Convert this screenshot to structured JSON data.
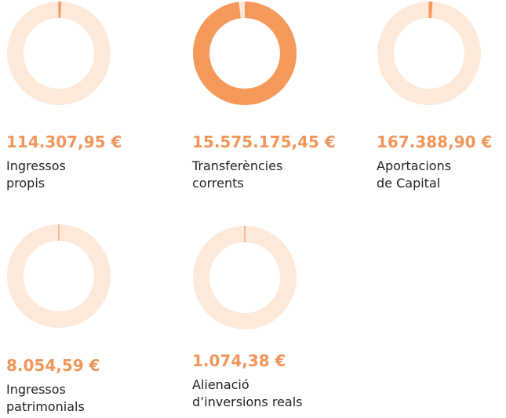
{
  "chart_data": [
    {
      "type": "donut",
      "values": [
        114307.95
      ],
      "value_labels": [
        "114.307,95 €"
      ],
      "label": [
        "Ingressos",
        "propis"
      ],
      "color": "#f4995a",
      "track_color": "#fde9da"
    },
    {
      "type": "donut",
      "values": [
        15575175.45
      ],
      "value_labels": [
        "15.575.175,45 €"
      ],
      "label": [
        "Transferències",
        "corrents"
      ],
      "color": "#f4995a",
      "track_color": "#fde9da"
    },
    {
      "type": "donut",
      "values": [
        167388.9
      ],
      "value_labels": [
        "167.388,90 €"
      ],
      "label": [
        "Aportacions",
        "de Capital"
      ],
      "color": "#f4995a",
      "track_color": "#fde9da"
    },
    {
      "type": "donut",
      "values": [
        8054.59
      ],
      "value_labels": [
        "8.054,59 €"
      ],
      "label": [
        "Ingressos",
        "patrimonials"
      ],
      "color": "#f4995a",
      "track_color": "#fde9da"
    },
    {
      "type": "donut",
      "values": [
        1074.38
      ],
      "value_labels": [
        "1.074,38 €"
      ],
      "label": [
        "Alienació",
        "d’inversions reals"
      ],
      "color": "#f4995a",
      "track_color": "#fde9da"
    }
  ]
}
